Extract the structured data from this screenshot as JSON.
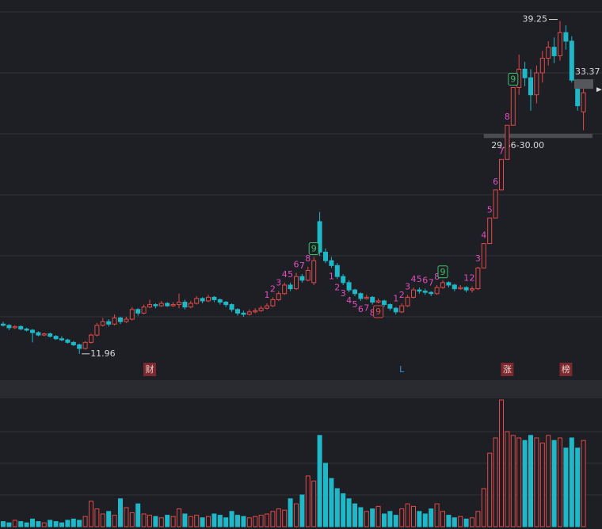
{
  "chart_data": {
    "type": "candlestick",
    "up_color": "#e04a4a",
    "down_color": "#1fb8c8",
    "ylim": [
      10,
      40
    ],
    "grid_levels": [
      15,
      20,
      25,
      30,
      35,
      40
    ],
    "candles": [
      [
        14.4,
        14.6,
        14.2,
        14.3
      ],
      [
        14.3,
        14.4,
        13.9,
        14.1
      ],
      [
        14.1,
        14.3,
        14.0,
        14.2
      ],
      [
        14.2,
        14.3,
        13.9,
        14.0
      ],
      [
        14.0,
        14.1,
        13.8,
        13.9
      ],
      [
        13.9,
        14.0,
        12.9,
        13.7
      ],
      [
        13.7,
        13.8,
        13.4,
        13.5
      ],
      [
        13.5,
        13.7,
        13.4,
        13.6
      ],
      [
        13.6,
        13.7,
        13.3,
        13.4
      ],
      [
        13.4,
        13.5,
        13.1,
        13.2
      ],
      [
        13.2,
        13.4,
        13.0,
        13.1
      ],
      [
        13.1,
        13.2,
        12.8,
        12.9
      ],
      [
        12.9,
        13.0,
        12.6,
        12.7
      ],
      [
        12.7,
        12.8,
        11.96,
        12.4
      ],
      [
        12.4,
        13.0,
        12.3,
        12.9
      ],
      [
        12.9,
        13.6,
        12.8,
        13.5
      ],
      [
        13.5,
        14.5,
        13.4,
        14.3
      ],
      [
        14.3,
        14.9,
        14.2,
        14.6
      ],
      [
        14.6,
        14.8,
        14.2,
        14.4
      ],
      [
        14.4,
        15.2,
        14.3,
        14.9
      ],
      [
        14.9,
        15.0,
        14.4,
        14.6
      ],
      [
        14.6,
        15.0,
        14.5,
        14.8
      ],
      [
        14.8,
        15.8,
        14.7,
        15.6
      ],
      [
        15.6,
        15.7,
        15.1,
        15.3
      ],
      [
        15.3,
        16.0,
        15.2,
        15.8
      ],
      [
        15.8,
        16.4,
        15.7,
        16.0
      ],
      [
        16.0,
        16.1,
        15.7,
        15.9
      ],
      [
        15.9,
        16.3,
        15.8,
        16.1
      ],
      [
        16.1,
        16.2,
        15.8,
        15.9
      ],
      [
        15.9,
        16.2,
        15.8,
        16.0
      ],
      [
        16.0,
        16.9,
        15.7,
        16.2
      ],
      [
        16.2,
        16.4,
        15.6,
        15.8
      ],
      [
        15.8,
        16.3,
        15.7,
        16.1
      ],
      [
        16.1,
        16.7,
        16.0,
        16.5
      ],
      [
        16.5,
        16.6,
        16.1,
        16.3
      ],
      [
        16.3,
        16.8,
        16.2,
        16.6
      ],
      [
        16.6,
        16.7,
        16.2,
        16.4
      ],
      [
        16.4,
        16.5,
        16.0,
        16.2
      ],
      [
        16.2,
        16.3,
        15.8,
        16.0
      ],
      [
        16.0,
        16.1,
        15.4,
        15.6
      ],
      [
        15.6,
        15.7,
        15.1,
        15.3
      ],
      [
        15.3,
        15.5,
        15.0,
        15.2
      ],
      [
        15.2,
        15.6,
        15.1,
        15.4
      ],
      [
        15.4,
        15.7,
        15.3,
        15.5
      ],
      [
        15.5,
        15.9,
        15.4,
        15.7
      ],
      [
        15.7,
        16.1,
        15.6,
        15.9
      ],
      [
        15.9,
        16.6,
        15.8,
        16.4
      ],
      [
        16.4,
        17.1,
        16.3,
        16.9
      ],
      [
        16.9,
        17.8,
        16.8,
        17.6
      ],
      [
        17.6,
        17.8,
        17.1,
        17.3
      ],
      [
        17.3,
        18.6,
        17.2,
        18.3
      ],
      [
        18.3,
        18.5,
        17.8,
        18.0
      ],
      [
        18.0,
        19.1,
        17.9,
        18.8
      ],
      [
        17.8,
        19.9,
        17.6,
        19.6
      ],
      [
        22.8,
        23.6,
        20.0,
        20.3
      ],
      [
        20.3,
        20.6,
        19.4,
        19.6
      ],
      [
        19.6,
        19.9,
        19.0,
        19.2
      ],
      [
        19.2,
        19.4,
        18.1,
        18.3
      ],
      [
        18.3,
        18.5,
        17.6,
        17.8
      ],
      [
        17.8,
        18.0,
        17.0,
        17.2
      ],
      [
        17.2,
        17.3,
        16.7,
        16.9
      ],
      [
        16.9,
        17.0,
        16.3,
        16.5
      ],
      [
        16.5,
        16.8,
        16.4,
        16.6
      ],
      [
        16.6,
        16.7,
        16.0,
        16.2
      ],
      [
        16.2,
        16.5,
        16.1,
        16.3
      ],
      [
        16.3,
        16.4,
        15.8,
        16.0
      ],
      [
        16.0,
        16.1,
        15.5,
        15.7
      ],
      [
        15.7,
        15.8,
        15.2,
        15.4
      ],
      [
        15.4,
        16.1,
        15.3,
        15.9
      ],
      [
        15.9,
        16.8,
        15.8,
        16.6
      ],
      [
        16.6,
        17.4,
        16.5,
        17.2
      ],
      [
        17.2,
        17.4,
        16.9,
        17.1
      ],
      [
        17.1,
        17.3,
        16.8,
        17.0
      ],
      [
        17.0,
        17.1,
        16.7,
        16.9
      ],
      [
        16.9,
        17.6,
        16.8,
        17.4
      ],
      [
        17.4,
        18.0,
        17.3,
        17.8
      ],
      [
        17.8,
        17.9,
        17.4,
        17.6
      ],
      [
        17.6,
        17.7,
        17.1,
        17.3
      ],
      [
        17.3,
        17.6,
        17.2,
        17.4
      ],
      [
        17.4,
        17.5,
        17.0,
        17.2
      ],
      [
        17.2,
        17.5,
        17.0,
        17.3
      ],
      [
        17.3,
        19.1,
        17.2,
        19.0
      ],
      [
        19.0,
        21.0,
        19.0,
        21.0
      ],
      [
        21.0,
        23.1,
        21.0,
        23.1
      ],
      [
        23.1,
        25.4,
        23.1,
        25.4
      ],
      [
        25.4,
        27.9,
        25.4,
        27.9
      ],
      [
        27.9,
        30.7,
        27.9,
        30.7
      ],
      [
        30.7,
        33.8,
        30.7,
        33.8
      ],
      [
        33.8,
        36.5,
        33.2,
        35.3
      ],
      [
        35.3,
        35.9,
        33.9,
        34.6
      ],
      [
        34.6,
        35.3,
        31.9,
        33.2
      ],
      [
        33.2,
        35.6,
        32.5,
        35.0
      ],
      [
        35.0,
        36.8,
        34.2,
        36.2
      ],
      [
        36.2,
        37.6,
        35.6,
        37.1
      ],
      [
        37.1,
        37.9,
        35.8,
        36.4
      ],
      [
        36.4,
        39.25,
        36.0,
        38.3
      ],
      [
        38.3,
        38.9,
        36.9,
        37.6
      ],
      [
        37.6,
        38.0,
        34.2,
        34.4
      ],
      [
        34.4,
        34.5,
        31.9,
        32.3
      ],
      [
        31.8,
        34.0,
        30.3,
        33.37
      ]
    ],
    "volume_ylim": [
      0,
      100
    ],
    "volume_grid_levels": [
      25,
      50,
      75
    ],
    "volume": [
      4,
      3,
      5,
      4,
      3,
      6,
      4,
      3,
      5,
      4,
      3,
      5,
      6,
      5,
      8,
      20,
      14,
      10,
      12,
      9,
      22,
      15,
      11,
      18,
      10,
      9,
      8,
      7,
      9,
      8,
      14,
      10,
      8,
      9,
      7,
      8,
      10,
      9,
      7,
      12,
      9,
      8,
      7,
      8,
      9,
      10,
      12,
      14,
      13,
      22,
      18,
      25,
      40,
      36,
      72,
      50,
      38,
      30,
      26,
      22,
      18,
      15,
      12,
      14,
      16,
      10,
      12,
      9,
      14,
      18,
      16,
      12,
      10,
      14,
      18,
      12,
      9,
      7,
      8,
      6,
      7,
      12,
      30,
      58,
      70,
      100,
      75,
      72,
      70,
      68,
      72,
      70,
      66,
      72,
      68,
      70,
      62,
      70,
      62,
      68
    ],
    "high_label_index": 95,
    "low_label_index": 13,
    "band": {
      "low": 29.66,
      "high": 30.0,
      "label": "29.66-30.00"
    },
    "td_color": "#e04fc0",
    "td_marks": [
      {
        "text": "1",
        "index": 45,
        "side": "above"
      },
      {
        "text": "2",
        "index": 46,
        "side": "above"
      },
      {
        "text": "3",
        "index": 47,
        "side": "above"
      },
      {
        "text": "4",
        "index": 48,
        "side": "above"
      },
      {
        "text": "5",
        "index": 49,
        "side": "above"
      },
      {
        "text": "6",
        "index": 50,
        "side": "above"
      },
      {
        "text": "7",
        "index": 51,
        "side": "above"
      },
      {
        "text": "8",
        "index": 52,
        "side": "above"
      },
      {
        "text": "9",
        "index": 53,
        "side": "above"
      },
      {
        "text": "1",
        "index": 56,
        "side": "below"
      },
      {
        "text": "2",
        "index": 57,
        "side": "below"
      },
      {
        "text": "3",
        "index": 58,
        "side": "below"
      },
      {
        "text": "4",
        "index": 59,
        "side": "below"
      },
      {
        "text": "5",
        "index": 60,
        "side": "below"
      },
      {
        "text": "6",
        "index": 61,
        "side": "below"
      },
      {
        "text": "7",
        "index": 62,
        "side": "below"
      },
      {
        "text": "8",
        "index": 63,
        "side": "below"
      },
      {
        "text": "9",
        "index": 64,
        "side": "below"
      },
      {
        "text": "1",
        "index": 67,
        "side": "above"
      },
      {
        "text": "2",
        "index": 68,
        "side": "above"
      },
      {
        "text": "3",
        "index": 69,
        "side": "above"
      },
      {
        "text": "4",
        "index": 70,
        "side": "above"
      },
      {
        "text": "5",
        "index": 71,
        "side": "above"
      },
      {
        "text": "6",
        "index": 72,
        "side": "above"
      },
      {
        "text": "7",
        "index": 73,
        "side": "above"
      },
      {
        "text": "8",
        "index": 74,
        "side": "above"
      },
      {
        "text": "9",
        "index": 75,
        "side": "above"
      },
      {
        "text": "1",
        "index": 79,
        "side": "above"
      },
      {
        "text": "2",
        "index": 80,
        "side": "above"
      },
      {
        "text": "3",
        "index": 81,
        "side": "above"
      },
      {
        "text": "4",
        "index": 82,
        "side": "above"
      },
      {
        "text": "5",
        "index": 83,
        "side": "above"
      },
      {
        "text": "6",
        "index": 84,
        "side": "above"
      },
      {
        "text": "7",
        "index": 85,
        "side": "above"
      },
      {
        "text": "8",
        "index": 86,
        "side": "above"
      },
      {
        "text": "9",
        "index": 87,
        "side": "above"
      }
    ],
    "events": [
      {
        "text": "财",
        "index": 25,
        "boxed": true
      },
      {
        "text": "L",
        "index": 68,
        "boxed": false
      },
      {
        "text": "涨",
        "index": 86,
        "boxed": true
      },
      {
        "text": "榜",
        "index": 96,
        "boxed": true
      }
    ]
  }
}
